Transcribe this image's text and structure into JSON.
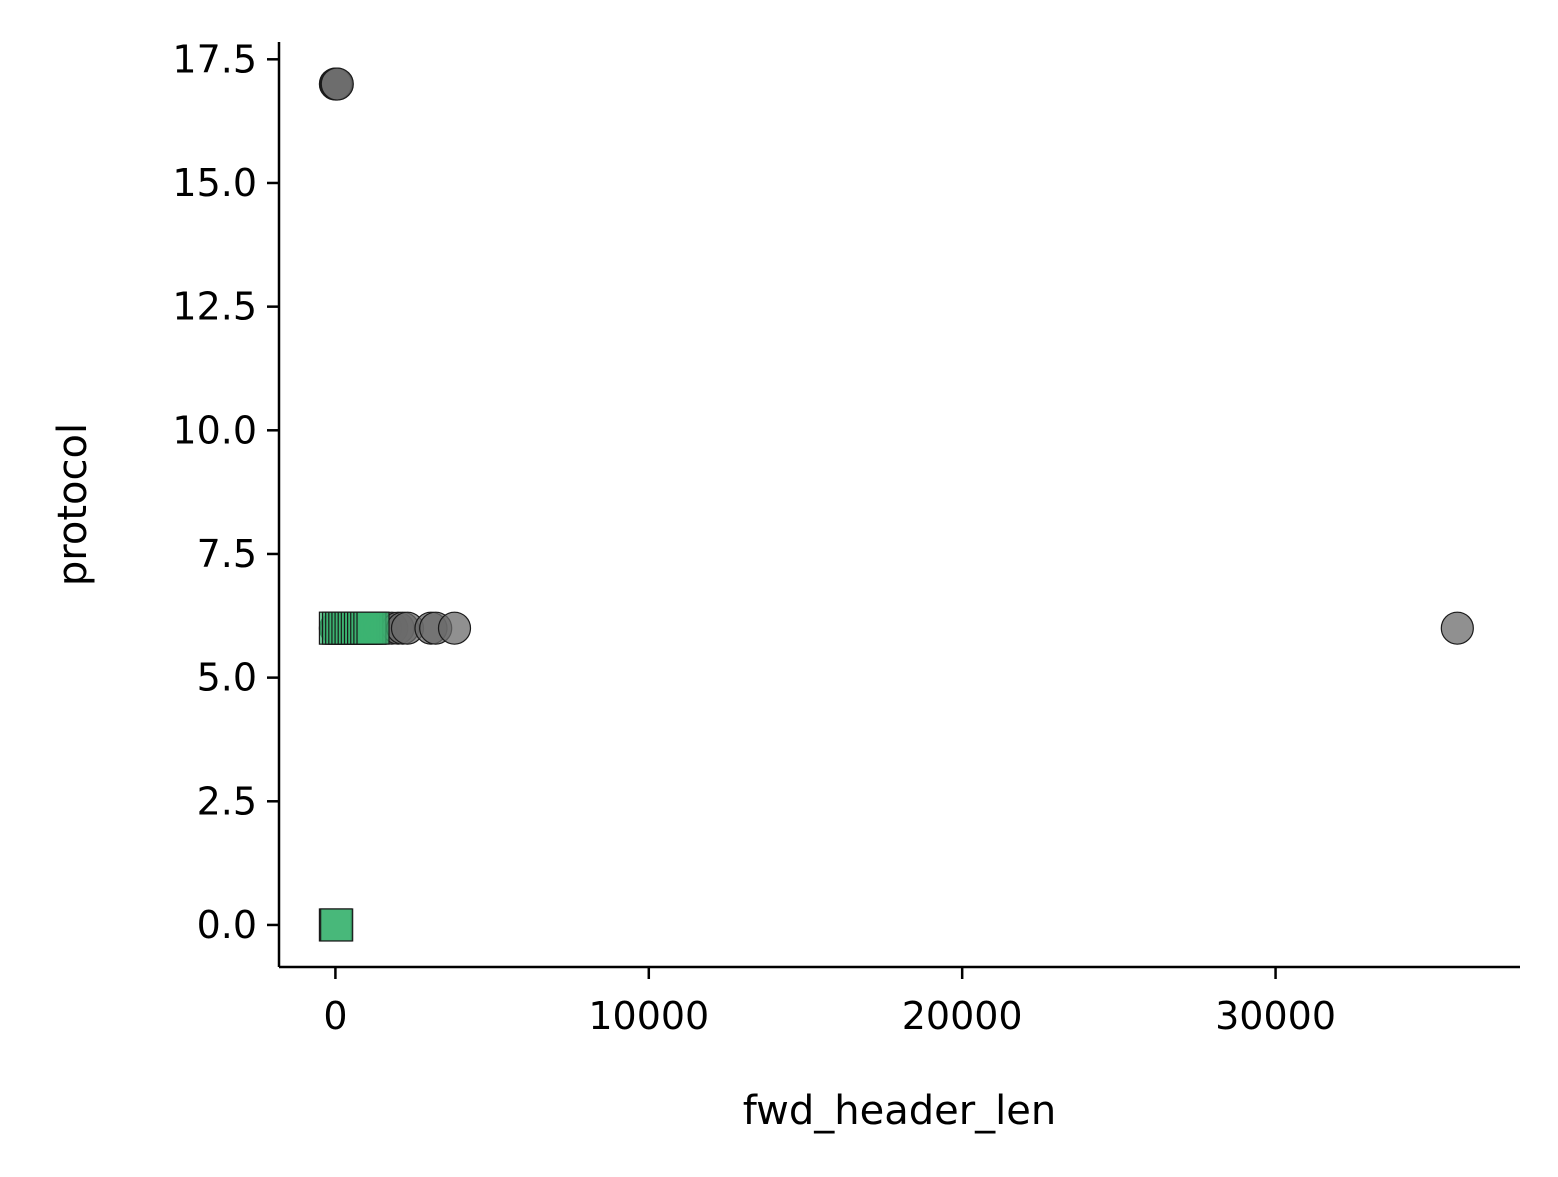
{
  "chart_data": {
    "type": "scatter",
    "title": "",
    "xlabel": "fwd_header_len",
    "ylabel": "protocol",
    "xlim": [
      -1800,
      37800
    ],
    "ylim": [
      -0.85,
      17.85
    ],
    "xticks": [
      0,
      10000,
      20000,
      30000
    ],
    "xtick_labels": [
      "0",
      "10000",
      "20000",
      "30000"
    ],
    "yticks": [
      0.0,
      2.5,
      5.0,
      7.5,
      10.0,
      12.5,
      15.0,
      17.5
    ],
    "ytick_labels": [
      "0.0",
      "2.5",
      "5.0",
      "7.5",
      "10.0",
      "12.5",
      "15.0",
      "17.5"
    ],
    "grid": false,
    "legend": "none",
    "series": [
      {
        "marker": "circle",
        "color": "#6b6b6b",
        "points": [
          {
            "x": 0,
            "y": 17
          },
          {
            "x": 30,
            "y": 17
          },
          {
            "x": 60,
            "y": 17
          },
          {
            "x": 0,
            "y": 6
          },
          {
            "x": 40,
            "y": 6
          },
          {
            "x": 120,
            "y": 6
          },
          {
            "x": 200,
            "y": 6
          },
          {
            "x": 320,
            "y": 6
          },
          {
            "x": 440,
            "y": 6
          },
          {
            "x": 560,
            "y": 6
          },
          {
            "x": 700,
            "y": 6
          },
          {
            "x": 860,
            "y": 6
          },
          {
            "x": 1000,
            "y": 6
          },
          {
            "x": 1150,
            "y": 6
          },
          {
            "x": 1300,
            "y": 6
          },
          {
            "x": 1450,
            "y": 6
          },
          {
            "x": 1600,
            "y": 6
          },
          {
            "x": 1800,
            "y": 6
          },
          {
            "x": 2000,
            "y": 6
          },
          {
            "x": 2150,
            "y": 6
          },
          {
            "x": 2300,
            "y": 6
          },
          {
            "x": 3050,
            "y": 6
          },
          {
            "x": 3200,
            "y": 6
          },
          {
            "x": 3800,
            "y": 6
          },
          {
            "x": 35800,
            "y": 6
          }
        ]
      },
      {
        "marker": "square",
        "color": "#3cb371",
        "points": [
          {
            "x": 0,
            "y": 6
          },
          {
            "x": 100,
            "y": 6
          },
          {
            "x": 200,
            "y": 6
          },
          {
            "x": 300,
            "y": 6
          },
          {
            "x": 400,
            "y": 6
          },
          {
            "x": 500,
            "y": 6
          },
          {
            "x": 600,
            "y": 6
          },
          {
            "x": 700,
            "y": 6
          },
          {
            "x": 800,
            "y": 6
          },
          {
            "x": 900,
            "y": 6
          },
          {
            "x": 1000,
            "y": 6
          },
          {
            "x": 1100,
            "y": 6
          },
          {
            "x": 1200,
            "y": 6
          },
          {
            "x": 0,
            "y": 0
          },
          {
            "x": 40,
            "y": 0
          }
        ]
      }
    ]
  }
}
